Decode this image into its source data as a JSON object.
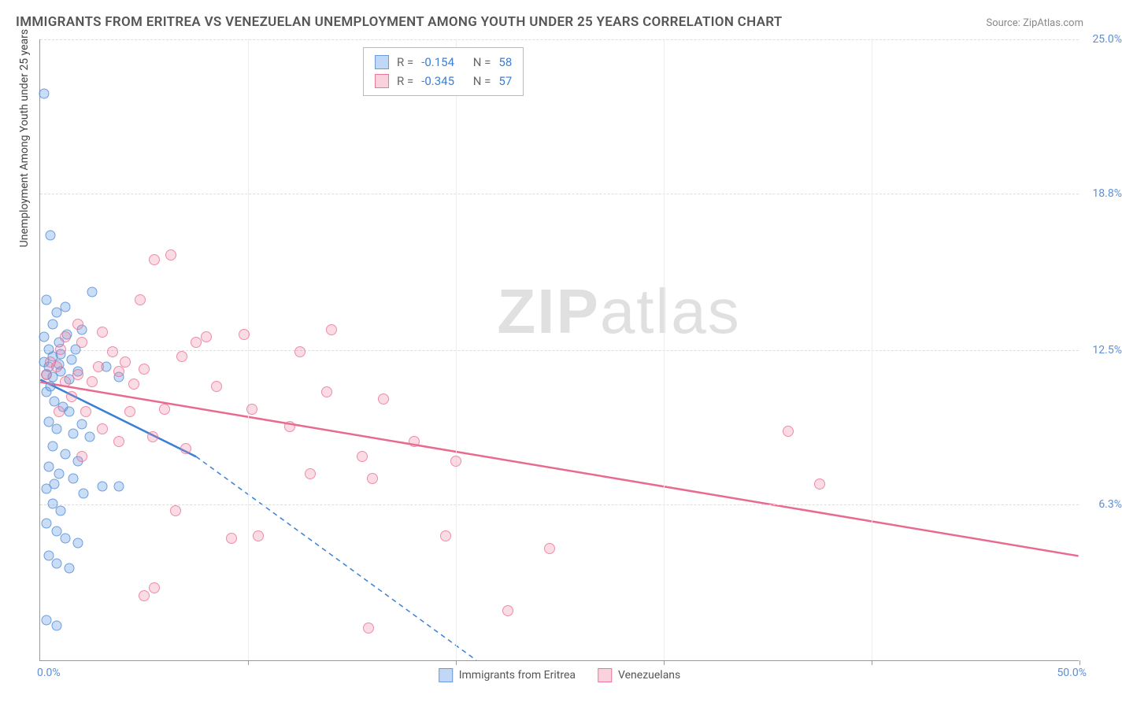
{
  "title": "IMMIGRANTS FROM ERITREA VS VENEZUELAN UNEMPLOYMENT AMONG YOUTH UNDER 25 YEARS CORRELATION CHART",
  "source": "Source: ZipAtlas.com",
  "watermark": {
    "zip": "ZIP",
    "atlas": "atlas"
  },
  "chart": {
    "type": "scatter",
    "background_color": "#ffffff",
    "grid_color": "#e0e0e0",
    "border_color": "#999999",
    "xaxis": {
      "lim": [
        0,
        50
      ],
      "ticks_major": [
        0,
        10,
        20,
        30,
        40,
        50
      ],
      "label_left": "0.0%",
      "label_right": "50.0%"
    },
    "yaxis": {
      "title": "Unemployment Among Youth under 25 years",
      "lim": [
        0,
        25
      ],
      "ticks": [
        {
          "v": 6.3,
          "label": "6.3%"
        },
        {
          "v": 12.5,
          "label": "12.5%"
        },
        {
          "v": 18.8,
          "label": "18.8%"
        },
        {
          "v": 25.0,
          "label": "25.0%"
        }
      ]
    },
    "legend_top": [
      {
        "swatch": "blue",
        "R_label": "R =",
        "R": "-0.154",
        "N_label": "N =",
        "N": "58"
      },
      {
        "swatch": "pink",
        "R_label": "R =",
        "R": "-0.345",
        "N_label": "N =",
        "N": "57"
      }
    ],
    "legend_bottom": [
      {
        "swatch": "blue",
        "label": "Immigrants from Eritrea"
      },
      {
        "swatch": "pink",
        "label": "Venezuelans"
      }
    ],
    "series": {
      "blue": {
        "color_fill": "rgba(100,160,230,0.35)",
        "color_stroke": "#3b7fd6",
        "marker_radius": 6.5,
        "trend": {
          "x1": 0,
          "y1": 11.3,
          "x2": 7.5,
          "y2": 8.2,
          "dash_ext_x2": 21,
          "dash_ext_y2": 0,
          "width": 2.5
        },
        "points": [
          [
            0.2,
            22.8
          ],
          [
            0.5,
            17.1
          ],
          [
            0.3,
            14.5
          ],
          [
            0.8,
            14.0
          ],
          [
            1.2,
            14.2
          ],
          [
            2.0,
            13.3
          ],
          [
            2.5,
            14.8
          ],
          [
            0.2,
            13.0
          ],
          [
            0.4,
            12.5
          ],
          [
            0.6,
            12.2
          ],
          [
            0.9,
            11.9
          ],
          [
            1.5,
            12.1
          ],
          [
            0.3,
            11.5
          ],
          [
            0.6,
            11.4
          ],
          [
            1.0,
            11.6
          ],
          [
            1.4,
            11.3
          ],
          [
            1.8,
            11.6
          ],
          [
            3.2,
            11.8
          ],
          [
            3.8,
            11.4
          ],
          [
            0.3,
            10.8
          ],
          [
            0.7,
            10.4
          ],
          [
            1.1,
            10.2
          ],
          [
            1.4,
            10.0
          ],
          [
            2.0,
            9.5
          ],
          [
            0.4,
            9.6
          ],
          [
            0.8,
            9.3
          ],
          [
            1.6,
            9.1
          ],
          [
            2.4,
            9.0
          ],
          [
            0.6,
            8.6
          ],
          [
            1.2,
            8.3
          ],
          [
            1.8,
            8.0
          ],
          [
            0.4,
            7.8
          ],
          [
            0.9,
            7.5
          ],
          [
            1.6,
            7.3
          ],
          [
            3.0,
            7.0
          ],
          [
            3.8,
            7.0
          ],
          [
            0.3,
            6.9
          ],
          [
            0.7,
            7.1
          ],
          [
            2.1,
            6.7
          ],
          [
            0.6,
            6.3
          ],
          [
            1.0,
            6.0
          ],
          [
            0.3,
            5.5
          ],
          [
            0.8,
            5.2
          ],
          [
            1.2,
            4.9
          ],
          [
            1.8,
            4.7
          ],
          [
            0.4,
            4.2
          ],
          [
            0.8,
            3.9
          ],
          [
            1.4,
            3.7
          ],
          [
            0.3,
            1.6
          ],
          [
            0.8,
            1.4
          ],
          [
            0.2,
            12.0
          ],
          [
            0.5,
            11.0
          ],
          [
            0.9,
            12.8
          ],
          [
            1.3,
            13.1
          ],
          [
            0.6,
            13.5
          ],
          [
            1.0,
            12.3
          ],
          [
            0.4,
            11.8
          ],
          [
            1.7,
            12.5
          ]
        ]
      },
      "pink": {
        "color_fill": "rgba(240,130,160,0.28)",
        "color_stroke": "#e86b8f",
        "marker_radius": 7,
        "trend": {
          "x1": 0,
          "y1": 11.2,
          "x2": 50,
          "y2": 4.2,
          "width": 2.5
        },
        "points": [
          [
            5.5,
            16.1
          ],
          [
            6.3,
            16.3
          ],
          [
            9.8,
            13.1
          ],
          [
            3.0,
            13.2
          ],
          [
            4.1,
            12.0
          ],
          [
            3.5,
            12.4
          ],
          [
            2.0,
            12.8
          ],
          [
            1.2,
            13.0
          ],
          [
            1.8,
            11.5
          ],
          [
            2.5,
            11.2
          ],
          [
            3.8,
            11.6
          ],
          [
            4.5,
            11.1
          ],
          [
            8.0,
            13.0
          ],
          [
            5.0,
            11.7
          ],
          [
            7.5,
            12.8
          ],
          [
            12.5,
            12.4
          ],
          [
            14.0,
            13.3
          ],
          [
            16.5,
            10.5
          ],
          [
            10.2,
            10.1
          ],
          [
            8.5,
            11.0
          ],
          [
            6.0,
            10.1
          ],
          [
            5.4,
            9.0
          ],
          [
            7.0,
            8.5
          ],
          [
            12.0,
            9.4
          ],
          [
            15.5,
            8.2
          ],
          [
            18.0,
            8.8
          ],
          [
            20.0,
            8.0
          ],
          [
            6.5,
            6.0
          ],
          [
            9.2,
            4.9
          ],
          [
            10.5,
            5.0
          ],
          [
            13.0,
            7.5
          ],
          [
            16.0,
            7.3
          ],
          [
            19.5,
            5.0
          ],
          [
            24.5,
            4.5
          ],
          [
            3.0,
            9.3
          ],
          [
            3.8,
            8.8
          ],
          [
            2.2,
            10.0
          ],
          [
            1.5,
            10.6
          ],
          [
            0.8,
            11.8
          ],
          [
            1.0,
            12.5
          ],
          [
            1.8,
            13.5
          ],
          [
            5.0,
            2.6
          ],
          [
            5.5,
            2.9
          ],
          [
            15.8,
            1.3
          ],
          [
            22.5,
            2.0
          ],
          [
            36.0,
            9.2
          ],
          [
            37.5,
            7.1
          ],
          [
            0.5,
            12.0
          ],
          [
            1.2,
            11.2
          ],
          [
            2.8,
            11.8
          ],
          [
            4.3,
            10.0
          ],
          [
            6.8,
            12.2
          ],
          [
            13.8,
            10.8
          ],
          [
            4.8,
            14.5
          ],
          [
            0.3,
            11.5
          ],
          [
            0.9,
            10.0
          ],
          [
            2.0,
            8.2
          ]
        ]
      }
    }
  }
}
